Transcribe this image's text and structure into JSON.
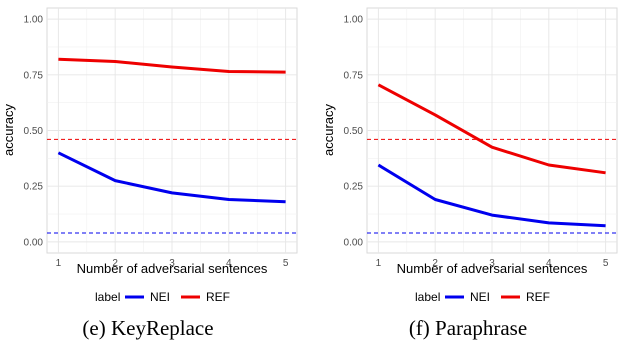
{
  "colors": {
    "NEI": "#0000ee",
    "REF": "#ee0000"
  },
  "chart_data": [
    {
      "type": "line",
      "caption": "(e) KeyReplace",
      "xlabel": "Number of adversarial sentences",
      "ylabel": "accuracy",
      "x": [
        1,
        2,
        3,
        4,
        5
      ],
      "xticks": [
        "1",
        "2",
        "3",
        "4",
        "5"
      ],
      "yticks": [
        "0.00",
        "0.25",
        "0.50",
        "0.75",
        "1.00"
      ],
      "xlim": [
        0.8,
        5.2
      ],
      "ylim": [
        -0.05,
        1.05
      ],
      "grid": true,
      "series": [
        {
          "name": "NEI",
          "values": [
            0.4,
            0.275,
            0.22,
            0.19,
            0.18
          ]
        },
        {
          "name": "REF",
          "values": [
            0.82,
            0.81,
            0.785,
            0.765,
            0.762
          ]
        }
      ],
      "reference_lines": [
        {
          "series": "REF",
          "y": 0.46,
          "style": "dashed"
        },
        {
          "series": "NEI",
          "y": 0.04,
          "style": "dashed"
        }
      ],
      "legend": {
        "title": "label",
        "entries": [
          "NEI",
          "REF"
        ],
        "position": "bottom"
      }
    },
    {
      "type": "line",
      "caption": "(f) Paraphrase",
      "xlabel": "Number of adversarial sentences",
      "ylabel": "accuracy",
      "x": [
        1,
        2,
        3,
        4,
        5
      ],
      "xticks": [
        "1",
        "2",
        "3",
        "4",
        "5"
      ],
      "yticks": [
        "0.00",
        "0.25",
        "0.50",
        "0.75",
        "1.00"
      ],
      "xlim": [
        0.8,
        5.2
      ],
      "ylim": [
        -0.05,
        1.05
      ],
      "grid": true,
      "series": [
        {
          "name": "NEI",
          "values": [
            0.345,
            0.19,
            0.12,
            0.085,
            0.072
          ]
        },
        {
          "name": "REF",
          "values": [
            0.705,
            0.57,
            0.425,
            0.345,
            0.31
          ]
        }
      ],
      "reference_lines": [
        {
          "series": "REF",
          "y": 0.46,
          "style": "dashed"
        },
        {
          "series": "NEI",
          "y": 0.04,
          "style": "dashed"
        }
      ],
      "legend": {
        "title": "label",
        "entries": [
          "NEI",
          "REF"
        ],
        "position": "bottom"
      }
    }
  ]
}
